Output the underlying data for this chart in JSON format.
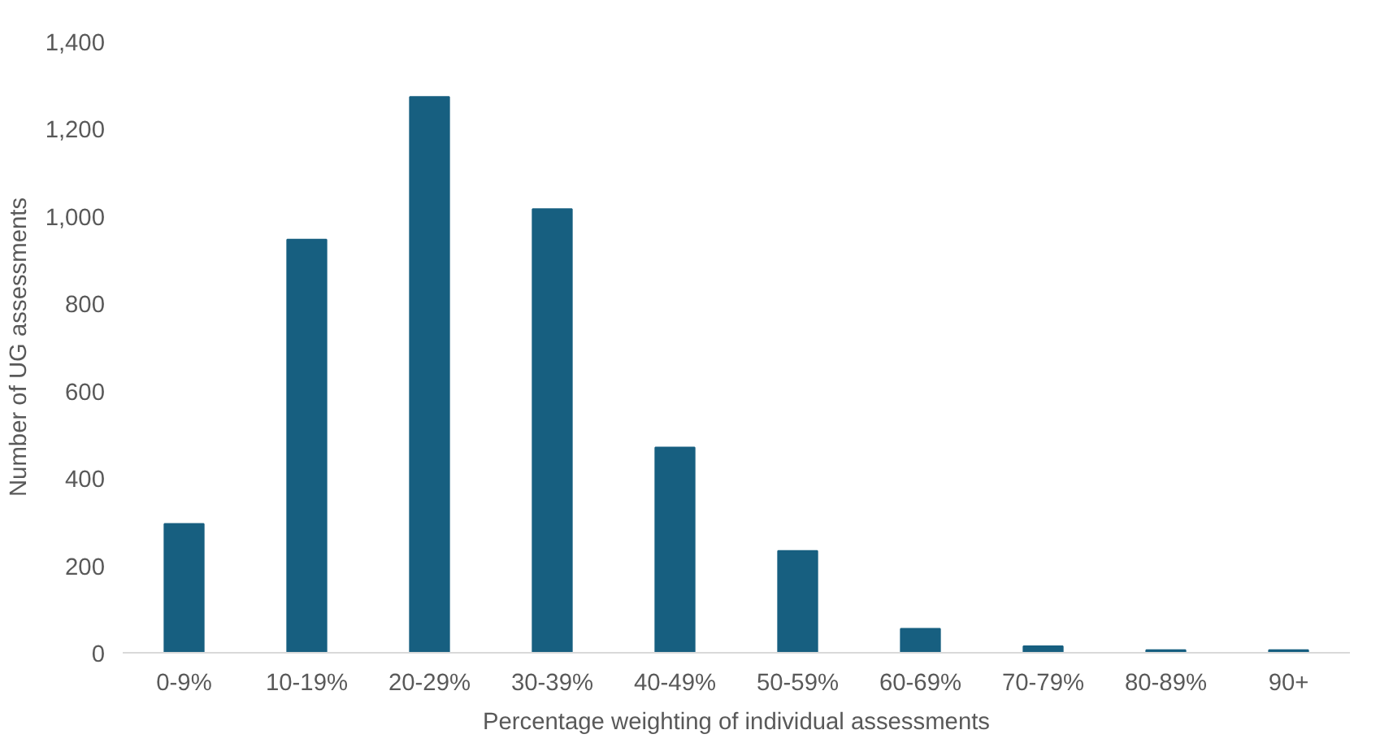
{
  "chart_data": {
    "type": "bar",
    "xlabel": "Percentage weighting of individual assessments",
    "ylabel": "Number of UG assessments",
    "categories": [
      "0-9%",
      "10-19%",
      "20-29%",
      "30-39%",
      "40-49%",
      "50-59%",
      "60-69%",
      "70-79%",
      "80-89%",
      "90+"
    ],
    "values": [
      295,
      946,
      1273,
      1016,
      470,
      233,
      55,
      15,
      6,
      6
    ],
    "color": "#175f80",
    "ylim": [
      0,
      1400
    ],
    "yticks": [
      {
        "value": 0,
        "label": "0"
      },
      {
        "value": 200,
        "label": "200"
      },
      {
        "value": 400,
        "label": "400"
      },
      {
        "value": 600,
        "label": "600"
      },
      {
        "value": 800,
        "label": "800"
      },
      {
        "value": 1000,
        "label": "1,000"
      },
      {
        "value": 1200,
        "label": "1,200"
      },
      {
        "value": 1400,
        "label": "1,400"
      }
    ],
    "grid": false
  }
}
